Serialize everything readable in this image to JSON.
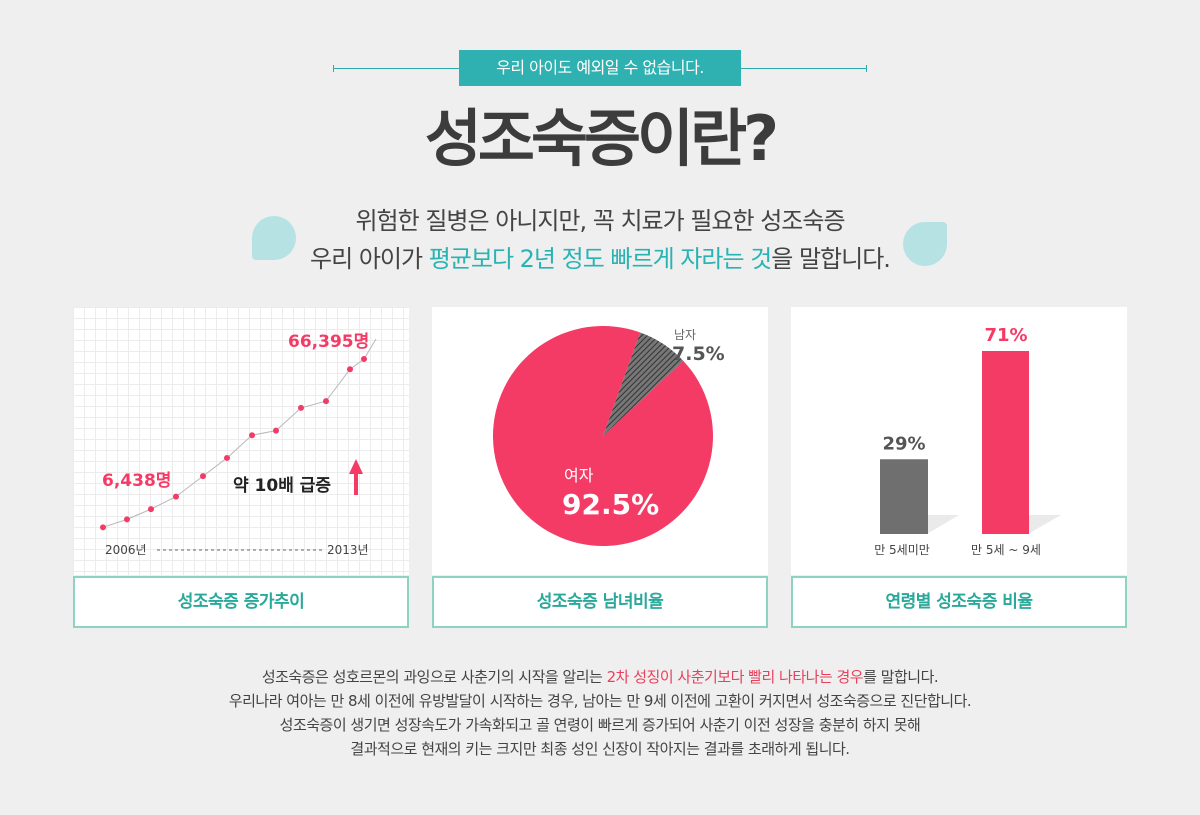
{
  "header": {
    "tag": "우리 아이도 예외일 수 없습니다.",
    "title": "성조숙증이란?",
    "subtitle_line1": "위험한 질병은 아니지만, 꼭 치료가 필요한 성조숙증",
    "subtitle_line2_pre": "우리 아이가 ",
    "subtitle_line2_hl": "평균보다 2년 정도 빠르게 자라는 것",
    "subtitle_line2_post": "을 말합니다."
  },
  "colors": {
    "accent": "#f43b66",
    "teal": "#2fb1b1",
    "gray": "#6f6f6f",
    "caption_border": "#8ed3c2"
  },
  "chart_data": [
    {
      "type": "line",
      "x_start_label": "2006년",
      "x_end_label": "2013년",
      "values": [
        0.5,
        1.2,
        2.1,
        3.2,
        5.0,
        6.6,
        8.6,
        9.0,
        11.0,
        11.6,
        14.4,
        15.3
      ],
      "first_value_label": "6,438명",
      "last_value_label": "66,395명",
      "annotation": "약 10배 급증",
      "caption": "성조숙증 증가추이"
    },
    {
      "type": "pie",
      "slices": [
        {
          "name": "여자",
          "value": 92.5,
          "label": "92.5%",
          "color": "#f43b66"
        },
        {
          "name": "남자",
          "value": 7.5,
          "label": "7.5%",
          "color": "#555555"
        }
      ],
      "caption": "성조숙증 남녀비율"
    },
    {
      "type": "bar",
      "categories": [
        "만 5세미만",
        "만 5세 ~ 9세"
      ],
      "values": [
        29,
        71
      ],
      "labels": [
        "29%",
        "71%"
      ],
      "colors": [
        "#6f6f6f",
        "#f43b66"
      ],
      "caption": "연령별 성조숙증 비율"
    }
  ],
  "description": {
    "line1_pre": "성조숙증은 성호르몬의 과잉으로 사춘기의 시작을 알리는 ",
    "line1_hl": "2차 성징이 사춘기보다 빨리 나타나는 경우",
    "line1_post": "를 말합니다.",
    "line2": "우리나라 여아는 만 8세 이전에 유방발달이 시작하는 경우, 남아는 만 9세 이전에 고환이 커지면서 성조숙증으로 진단합니다.",
    "line3": "성조숙증이 생기면 성장속도가 가속화되고 골 연령이 빠르게 증가되어 사춘기 이전 성장을 충분히 하지 못해",
    "line4": "결과적으로 현재의 키는 크지만 최종 성인 신장이 작아지는 결과를 초래하게 됩니다."
  }
}
